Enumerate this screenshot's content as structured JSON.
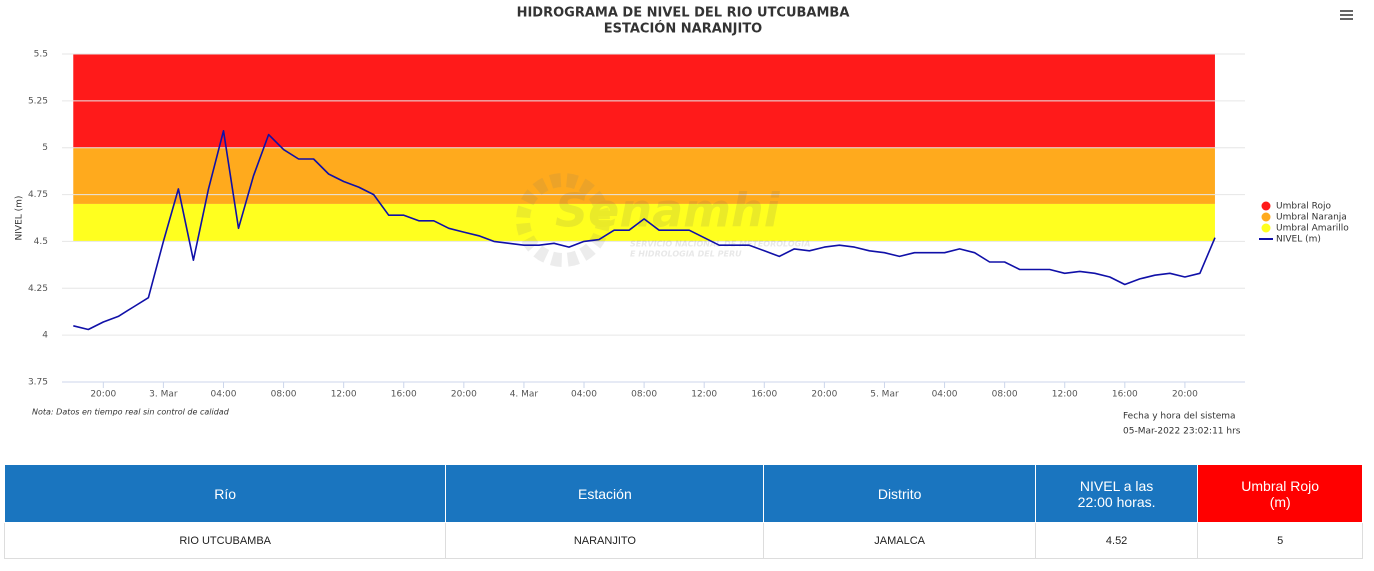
{
  "chart_data": {
    "type": "line",
    "title": "HIDROGRAMA DE NIVEL DEL RIO UTCUBAMBA",
    "subtitle": "ESTACIÓN NARANJITO",
    "y_label": "NIVEL (m)",
    "watermark": {
      "brand": "Senamhi",
      "line1": "SERVICIO NACIONAL DE METEOROLOGIA",
      "line2": "E HIDROLOGIA DEL PERU"
    },
    "note": "Nota: Datos en tiempo real sin control de calidad",
    "system_time_label": "Fecha y hora del sistema",
    "system_time": "05-Mar-2022 23:02:11 hrs",
    "xlim": [
      "2. Mar 17:15",
      "6. Mar 00:00"
    ],
    "xticks": [
      {
        "value": "2. Mar 20:00",
        "label": "20:00"
      },
      {
        "value": "3. Mar 00:00",
        "label": "3. Mar"
      },
      {
        "value": "3. Mar 04:00",
        "label": "04:00"
      },
      {
        "value": "3. Mar 08:00",
        "label": "08:00"
      },
      {
        "value": "3. Mar 12:00",
        "label": "12:00"
      },
      {
        "value": "3. Mar 16:00",
        "label": "16:00"
      },
      {
        "value": "3. Mar 20:00",
        "label": "20:00"
      },
      {
        "value": "4. Mar 00:00",
        "label": "4. Mar"
      },
      {
        "value": "4. Mar 04:00",
        "label": "04:00"
      },
      {
        "value": "4. Mar 08:00",
        "label": "08:00"
      },
      {
        "value": "4. Mar 12:00",
        "label": "12:00"
      },
      {
        "value": "4. Mar 16:00",
        "label": "16:00"
      },
      {
        "value": "4. Mar 20:00",
        "label": "20:00"
      },
      {
        "value": "5. Mar 00:00",
        "label": "5. Mar"
      },
      {
        "value": "5. Mar 04:00",
        "label": "04:00"
      },
      {
        "value": "5. Mar 08:00",
        "label": "08:00"
      },
      {
        "value": "5. Mar 12:00",
        "label": "12:00"
      },
      {
        "value": "5. Mar 16:00",
        "label": "16:00"
      },
      {
        "value": "5. Mar 20:00",
        "label": "20:00"
      }
    ],
    "ylim": [
      3.75,
      5.5
    ],
    "yticks": [
      3.75,
      4,
      4.25,
      4.5,
      4.75,
      5,
      5.25,
      5.5
    ],
    "grid": true,
    "legend": "right",
    "bands": [
      {
        "name": "Umbral Rojo",
        "color": "#ff1a1a",
        "from": 5,
        "to": 5.5
      },
      {
        "name": "Umbral Naranja",
        "color": "#ffaa1d",
        "from": 4.7,
        "to": 5
      },
      {
        "name": "Umbral Amarillo",
        "color": "#ffff1f",
        "from": 4.5,
        "to": 4.7
      }
    ],
    "x": [
      "2. Mar 18:00",
      "2. Mar 19:00",
      "2. Mar 20:00",
      "2. Mar 21:00",
      "2. Mar 22:00",
      "2. Mar 23:00",
      "3. Mar 00:00",
      "3. Mar 01:00",
      "3. Mar 02:00",
      "3. Mar 03:00",
      "3. Mar 04:00",
      "3. Mar 05:00",
      "3. Mar 06:00",
      "3. Mar 07:00",
      "3. Mar 08:00",
      "3. Mar 09:00",
      "3. Mar 10:00",
      "3. Mar 11:00",
      "3. Mar 12:00",
      "3. Mar 13:00",
      "3. Mar 14:00",
      "3. Mar 15:00",
      "3. Mar 16:00",
      "3. Mar 17:00",
      "3. Mar 18:00",
      "3. Mar 19:00",
      "3. Mar 20:00",
      "3. Mar 21:00",
      "3. Mar 22:00",
      "3. Mar 23:00",
      "4. Mar 00:00",
      "4. Mar 01:00",
      "4. Mar 02:00",
      "4. Mar 03:00",
      "4. Mar 04:00",
      "4. Mar 05:00",
      "4. Mar 06:00",
      "4. Mar 07:00",
      "4. Mar 08:00",
      "4. Mar 09:00",
      "4. Mar 10:00",
      "4. Mar 11:00",
      "4. Mar 12:00",
      "4. Mar 13:00",
      "4. Mar 14:00",
      "4. Mar 15:00",
      "4. Mar 16:00",
      "4. Mar 17:00",
      "4. Mar 18:00",
      "4. Mar 19:00",
      "4. Mar 20:00",
      "4. Mar 21:00",
      "4. Mar 22:00",
      "4. Mar 23:00",
      "5. Mar 00:00",
      "5. Mar 01:00",
      "5. Mar 02:00",
      "5. Mar 03:00",
      "5. Mar 04:00",
      "5. Mar 05:00",
      "5. Mar 06:00",
      "5. Mar 07:00",
      "5. Mar 08:00",
      "5. Mar 09:00",
      "5. Mar 10:00",
      "5. Mar 11:00",
      "5. Mar 12:00",
      "5. Mar 13:00",
      "5. Mar 14:00",
      "5. Mar 15:00",
      "5. Mar 16:00",
      "5. Mar 17:00",
      "5. Mar 18:00",
      "5. Mar 19:00",
      "5. Mar 20:00",
      "5. Mar 21:00",
      "5. Mar 22:00"
    ],
    "series": [
      {
        "name": "NIVEL (m)",
        "color": "#1010a8",
        "values": [
          4.05,
          4.03,
          4.07,
          4.1,
          4.15,
          4.2,
          4.5,
          4.78,
          4.4,
          4.78,
          5.09,
          4.57,
          4.85,
          5.07,
          4.99,
          4.94,
          4.94,
          4.86,
          4.82,
          4.79,
          4.75,
          4.64,
          4.64,
          4.61,
          4.61,
          4.57,
          4.55,
          4.53,
          4.5,
          4.49,
          4.48,
          4.48,
          4.49,
          4.47,
          4.5,
          4.51,
          4.56,
          4.56,
          4.62,
          4.56,
          4.56,
          4.56,
          4.52,
          4.48,
          4.48,
          4.48,
          4.45,
          4.42,
          4.46,
          4.45,
          4.47,
          4.48,
          4.47,
          4.45,
          4.44,
          4.42,
          4.44,
          4.44,
          4.44,
          4.46,
          4.44,
          4.39,
          4.39,
          4.35,
          4.35,
          4.35,
          4.33,
          4.34,
          4.33,
          4.31,
          4.27,
          4.3,
          4.32,
          4.33,
          4.31,
          4.33,
          4.52
        ]
      }
    ]
  },
  "table": {
    "headers": [
      "Río",
      "Estación",
      "Distrito",
      "NIVEL a las 22:00 horas.",
      "Umbral Rojo (m)"
    ],
    "rows": [
      [
        "RIO UTCUBAMBA",
        "NARANJITO",
        "JAMALCA",
        4.52,
        5
      ]
    ]
  }
}
